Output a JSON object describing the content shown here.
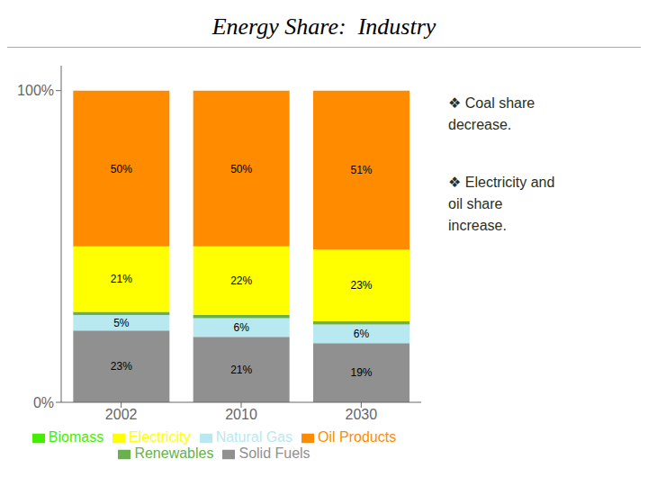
{
  "chart_data": {
    "type": "bar",
    "title": "Energy Share:  Industry",
    "stacked": true,
    "data_labels": true,
    "grid": false,
    "legend": "bottom",
    "categories": [
      "2002",
      "2010",
      "2030"
    ],
    "series": [
      {
        "name": "Solid Fuels",
        "color": "#909090",
        "values": [
          23,
          21,
          19
        ],
        "value_labels": [
          "23%",
          "21%",
          "19%"
        ]
      },
      {
        "name": "Natural Gas",
        "color": "#b8e8f0",
        "values": [
          5,
          6,
          6
        ],
        "value_labels": [
          "5%",
          "6%",
          "6%"
        ]
      },
      {
        "name": "Renewables",
        "color": "#6ab04c",
        "values": [
          1,
          1,
          1
        ]
      },
      {
        "name": "Biomass",
        "color": "#44ee00",
        "values": [
          0,
          0,
          0
        ]
      },
      {
        "name": "Electricity",
        "color": "#ffff00",
        "values": [
          21,
          22,
          23
        ],
        "value_labels": [
          "21%",
          "22%",
          "23%"
        ]
      },
      {
        "name": "Oil Products",
        "color": "#ff8c00",
        "values": [
          50,
          50,
          51
        ],
        "value_labels": [
          "50%",
          "50%",
          "51%"
        ]
      }
    ],
    "ylim": [
      0,
      108
    ],
    "yticks": [
      {
        "value": 0,
        "label": "0%"
      },
      {
        "value": 100,
        "label": "100%"
      }
    ],
    "annotations": [
      "❖ Coal share\ndecrease.",
      "❖ Electricity and\noil share\nincrease."
    ]
  }
}
